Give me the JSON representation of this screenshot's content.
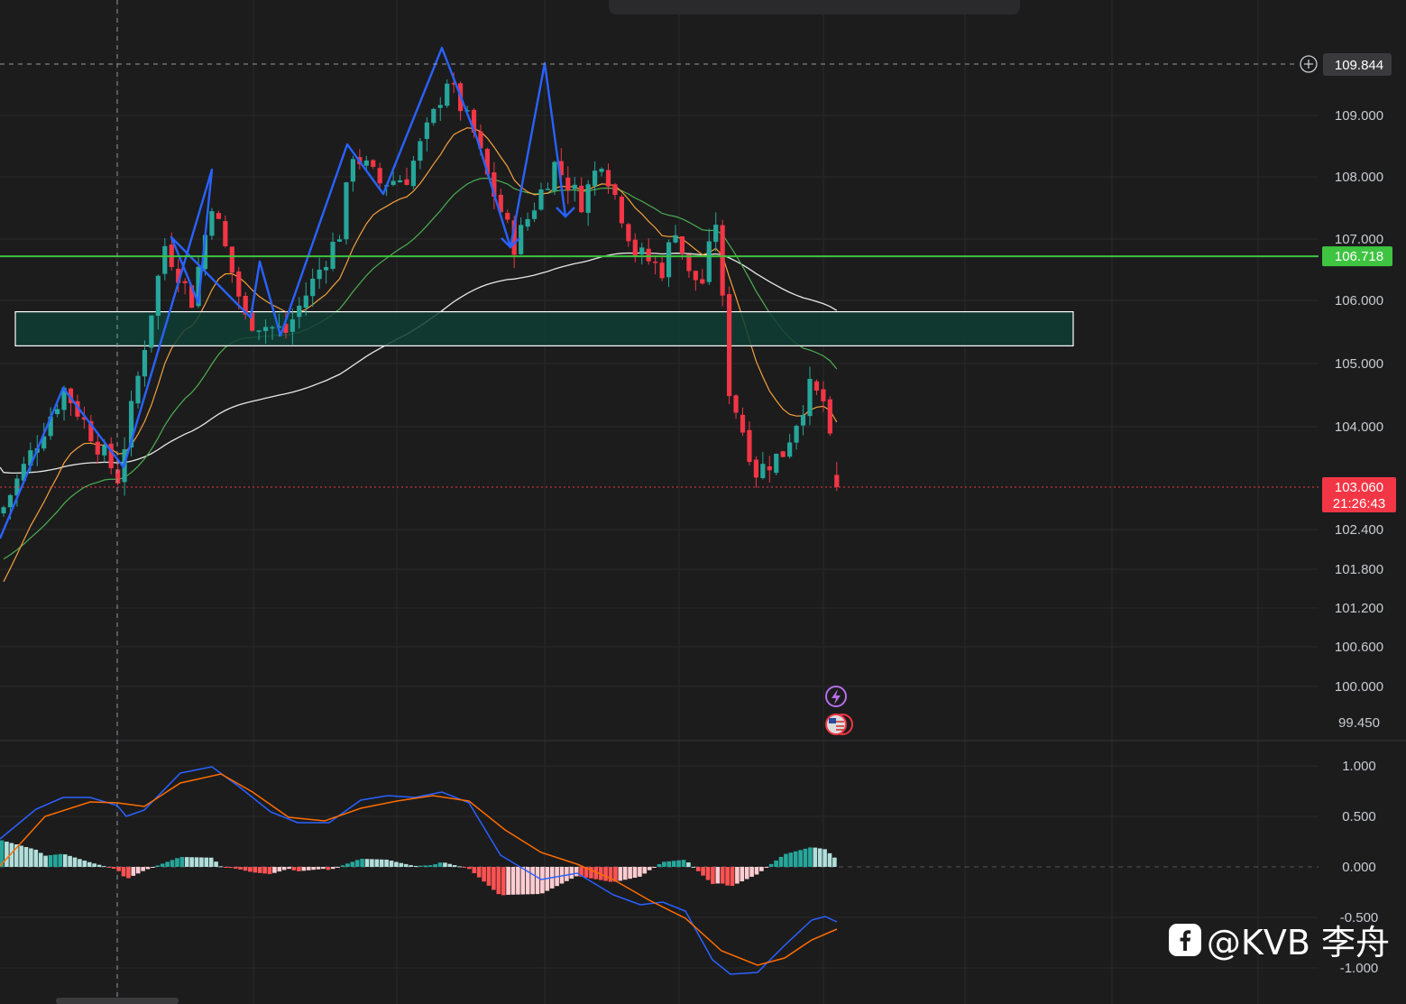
{
  "chart_data": {
    "type": "candlestick",
    "title": "",
    "xlabel": "",
    "ylabel": "",
    "price_axis": {
      "ticks": [
        "109.000",
        "108.000",
        "107.000",
        "106.000",
        "105.000",
        "104.000",
        "102.400",
        "101.800",
        "101.200",
        "100.600",
        "100.000",
        "99.450"
      ],
      "crosshair_value": "109.844",
      "support_line_value": "106.718",
      "last_price": "103.060",
      "countdown": "21:26:43"
    },
    "macd_axis": {
      "ticks": [
        "1.000",
        "0.500",
        "0.000",
        "-0.500",
        "-1.000"
      ]
    },
    "zone": {
      "low": 105.28,
      "high": 105.82
    },
    "colors": {
      "up": "#26a69a",
      "down": "#f23645",
      "ma_fast": "#f5a03c",
      "ma_mid": "#4caf50",
      "ma_slow": "#e8e8e8",
      "support": "#3ec440",
      "zigzag": "#2962ff",
      "macd_line": "#2962ff",
      "signal_line": "#ff6d00",
      "hist_up_strong": "#26a69a",
      "hist_up_weak": "#b2dfdb",
      "hist_down_strong": "#ff5252",
      "hist_down_weak": "#ffcdd2",
      "zone_fill": "#0f3d34",
      "last_price_tag": "#f23645",
      "support_tag": "#3ec440"
    },
    "icons": [
      "lightning-event-icon",
      "us-flag-event-icon"
    ]
  },
  "watermark": {
    "icon": "facebook-icon",
    "text": "@KVB 李舟"
  }
}
